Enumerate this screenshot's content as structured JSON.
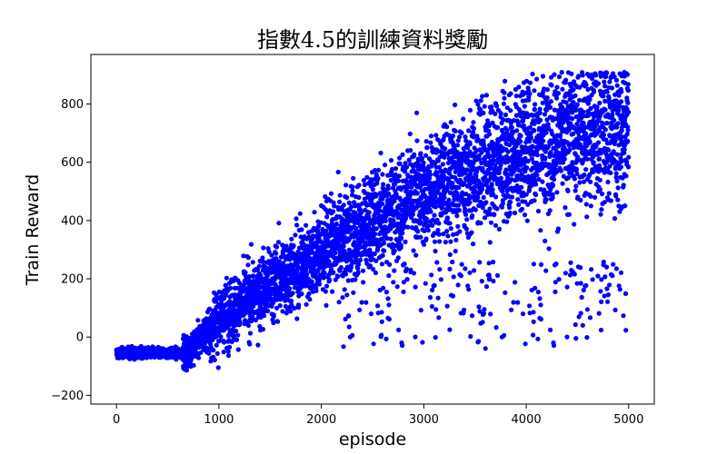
{
  "chart_data": {
    "type": "scatter",
    "title": "指數4.5的訓練資料獎勵",
    "xlabel": "episode",
    "ylabel": "Train Reward",
    "xlim": [
      -250,
      5250
    ],
    "ylim": [
      -230,
      970
    ],
    "xticks": [
      0,
      1000,
      2000,
      3000,
      4000,
      5000
    ],
    "yticks": [
      -200,
      0,
      200,
      400,
      600,
      800
    ],
    "marker_color": "#0000ff",
    "grid": false,
    "legend": "none",
    "trend": [
      {
        "x": 0,
        "y": -55
      },
      {
        "x": 700,
        "y": -50
      },
      {
        "x": 1000,
        "y": 60
      },
      {
        "x": 1500,
        "y": 180
      },
      {
        "x": 2000,
        "y": 290
      },
      {
        "x": 2500,
        "y": 400
      },
      {
        "x": 3000,
        "y": 500
      },
      {
        "x": 3500,
        "y": 580
      },
      {
        "x": 4000,
        "y": 650
      },
      {
        "x": 4500,
        "y": 700
      },
      {
        "x": 5000,
        "y": 730
      }
    ],
    "point_count": 5000
  }
}
